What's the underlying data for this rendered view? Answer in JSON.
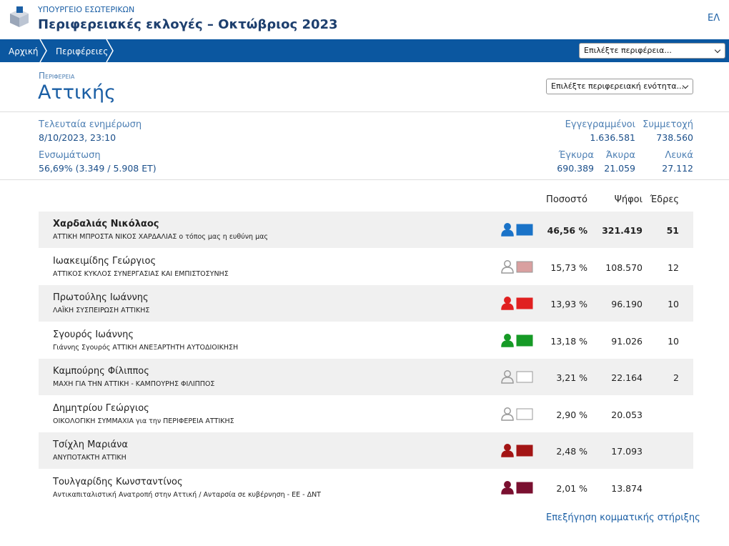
{
  "header": {
    "ministry": "ΥΠΟΥΡΓΕΙΟ ΕΣΩΤΕΡΙΚΩΝ",
    "title": "Περιφερειακές εκλογές – Οκτώβριος 2023",
    "lang": "ΕΛ"
  },
  "nav": {
    "breadcrumbs": [
      "Αρχική",
      "Περιφέρειες"
    ],
    "region_select": "Επιλέξτε περιφέρεια..."
  },
  "region": {
    "label": "Περιφερεια",
    "name": "Αττικής",
    "unit_select": "Επιλέξτε περιφερειακή ενότητα..."
  },
  "stats": {
    "last_update": {
      "label": "Τελευταία ενημέρωση",
      "value": "8/10/2023, 23:10"
    },
    "integration": {
      "label": "Ενσωμάτωση",
      "value": "56,69% (3.349 / 5.908 ΕΤ)"
    },
    "registered": {
      "label": "Εγγεγραμμένοι",
      "value": "1.636.581"
    },
    "turnout": {
      "label": "Συμμετοχή",
      "value": "738.560"
    },
    "valid": {
      "label": "Έγκυρα",
      "value": "690.389"
    },
    "invalid": {
      "label": "Άκυρα",
      "value": "21.059"
    },
    "blank": {
      "label": "Λευκά",
      "value": "27.112"
    }
  },
  "table": {
    "columns": [
      "Ποσοστό",
      "Ψήφοι",
      "Έδρες"
    ],
    "rows": [
      {
        "candidate": "Χαρδαλιάς Νικόλαος",
        "party": "ΑΤΤΙΚΗ ΜΠΡΟΣΤΑ ΝΙΚΟΣ ΧΑΡΔΑΛΙΑΣ ο τόπος μας η ευθύνη μας",
        "icon_color": "#1a73c8",
        "color": "#1a73c8",
        "percent": "46,56 %",
        "votes": "321.419",
        "seats": "51",
        "bold": true
      },
      {
        "candidate": "Ιωακειμίδης Γεώργιος",
        "party": "ΑΤΤΙΚΟΣ ΚΥΚΛΟΣ ΣΥΝΕΡΓΑΣΙΑΣ ΚΑΙ ΕΜΠΙΣΤΟΣΥΝΗΣ",
        "icon_color": "#999999",
        "color": "#d9a0a0",
        "percent": "15,73 %",
        "votes": "108.570",
        "seats": "12"
      },
      {
        "candidate": "Πρωτούλης Ιωάννης",
        "party": "ΛΑΪΚΗ ΣΥΣΠΕΙΡΩΣΗ ΑΤΤΙΚΗΣ",
        "icon_color": "#e02020",
        "color": "#e02020",
        "percent": "13,93 %",
        "votes": "96.190",
        "seats": "10"
      },
      {
        "candidate": "Σγουρός Ιωάννης",
        "party": "Γιάννης Σγουρός ΑΤΤΙΚΗ ΑΝΕΞΑΡΤΗΤΗ ΑΥΤΟΔΙΟΙΚΗΣΗ",
        "icon_color": "#169a26",
        "color": "#169a26",
        "percent": "13,18 %",
        "votes": "91.026",
        "seats": "10"
      },
      {
        "candidate": "Καμπούρης Φίλιππος",
        "party": "ΜΑΧΗ ΓΙΑ ΤΗΝ ΑΤΤΙΚΗ - ΚΑΜΠΟΥΡΗΣ ΦΙΛΙΠΠΟΣ",
        "icon_color": "#999999",
        "color": "#ffffff",
        "percent": "3,21 %",
        "votes": "22.164",
        "seats": "2"
      },
      {
        "candidate": "Δημητρίου Γεώργιος",
        "party": "ΟΙΚΟΛΟΓΙΚΗ ΣΥΜΜΑΧΙΑ για την ΠΕΡΙΦΕΡΕΙΑ ΑΤΤΙΚΗΣ",
        "icon_color": "#999999",
        "color": "#ffffff",
        "percent": "2,90 %",
        "votes": "20.053"
      },
      {
        "candidate": "Τσίχλη Μαριάνα",
        "party": "ΑΝΥΠΟΤΑΚΤΗ ΑΤΤΙΚΗ",
        "icon_color": "#a31515",
        "color": "#a31515",
        "percent": "2,48 %",
        "votes": "17.093"
      },
      {
        "candidate": "Τουλγαρίδης Κωνσταντίνος",
        "party": "Αντικαπιταλιστική Ανατροπή στην Αττική / Ανταρσία σε κυβέρνηση - ΕΕ - ΔΝΤ",
        "icon_color": "#7a1030",
        "color": "#7a1030",
        "percent": "2,01 %",
        "votes": "13.874"
      }
    ]
  },
  "footer_link": "Επεξήγηση κομματικής στήριξης"
}
